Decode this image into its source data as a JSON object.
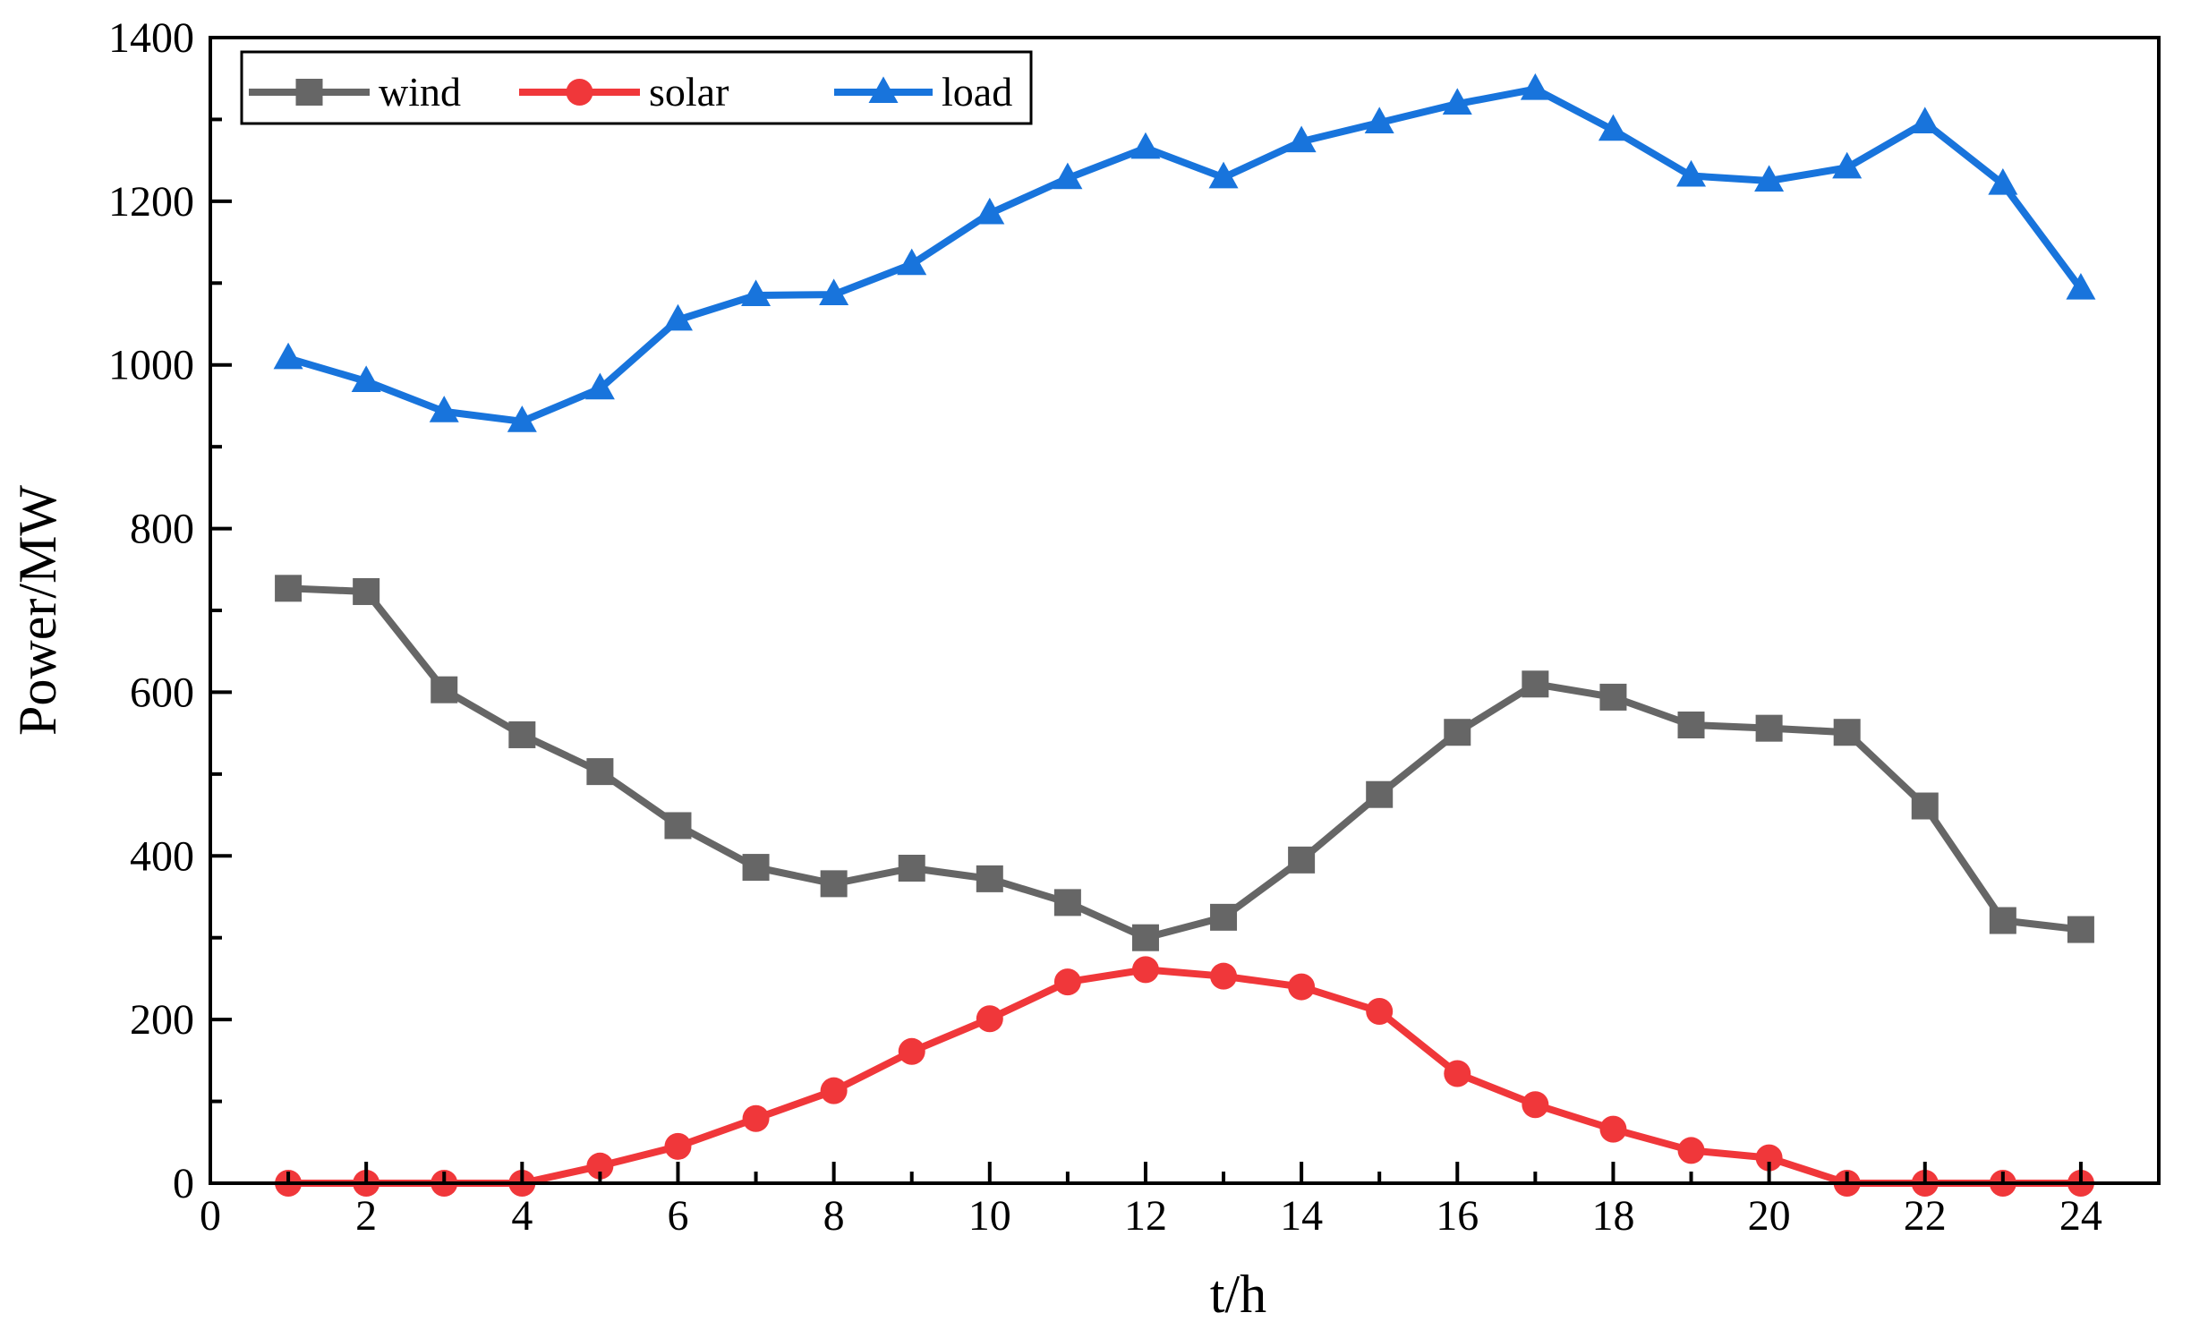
{
  "chart_data": {
    "type": "line",
    "title": "",
    "xlabel": "t/h",
    "ylabel": "Power/MW",
    "xlim": [
      0,
      25
    ],
    "ylim": [
      0,
      1400
    ],
    "x_ticks": [
      0,
      2,
      4,
      6,
      8,
      10,
      12,
      14,
      16,
      18,
      20,
      22,
      24
    ],
    "y_ticks": [
      0,
      200,
      400,
      600,
      800,
      1000,
      1200,
      1400
    ],
    "grid": false,
    "legend_position": "top-left",
    "x": [
      1,
      2,
      3,
      4,
      5,
      6,
      7,
      8,
      9,
      10,
      11,
      12,
      13,
      14,
      15,
      16,
      17,
      18,
      19,
      20,
      21,
      22,
      23,
      24
    ],
    "series": [
      {
        "name": "wind",
        "color": "#666666",
        "marker": "square",
        "values": [
          727,
          723,
          603,
          548,
          503,
          437,
          386,
          366,
          385,
          372,
          343,
          300,
          325,
          395,
          475,
          551,
          610,
          594,
          560,
          556,
          551,
          461,
          321,
          310
        ]
      },
      {
        "name": "solar",
        "color": "#f0373a",
        "marker": "circle",
        "values": [
          0,
          0,
          0,
          0,
          21,
          45,
          79,
          113,
          161,
          201,
          246,
          261,
          253,
          240,
          210,
          134,
          96,
          66,
          40,
          31,
          0,
          0,
          0,
          0
        ]
      },
      {
        "name": "load",
        "color": "#1874dc",
        "marker": "triangle",
        "values": [
          1008,
          980,
          943,
          931,
          971,
          1055,
          1085,
          1086,
          1123,
          1185,
          1228,
          1265,
          1229,
          1273,
          1296,
          1319,
          1337,
          1287,
          1231,
          1225,
          1241,
          1296,
          1221,
          1093
        ]
      }
    ]
  }
}
